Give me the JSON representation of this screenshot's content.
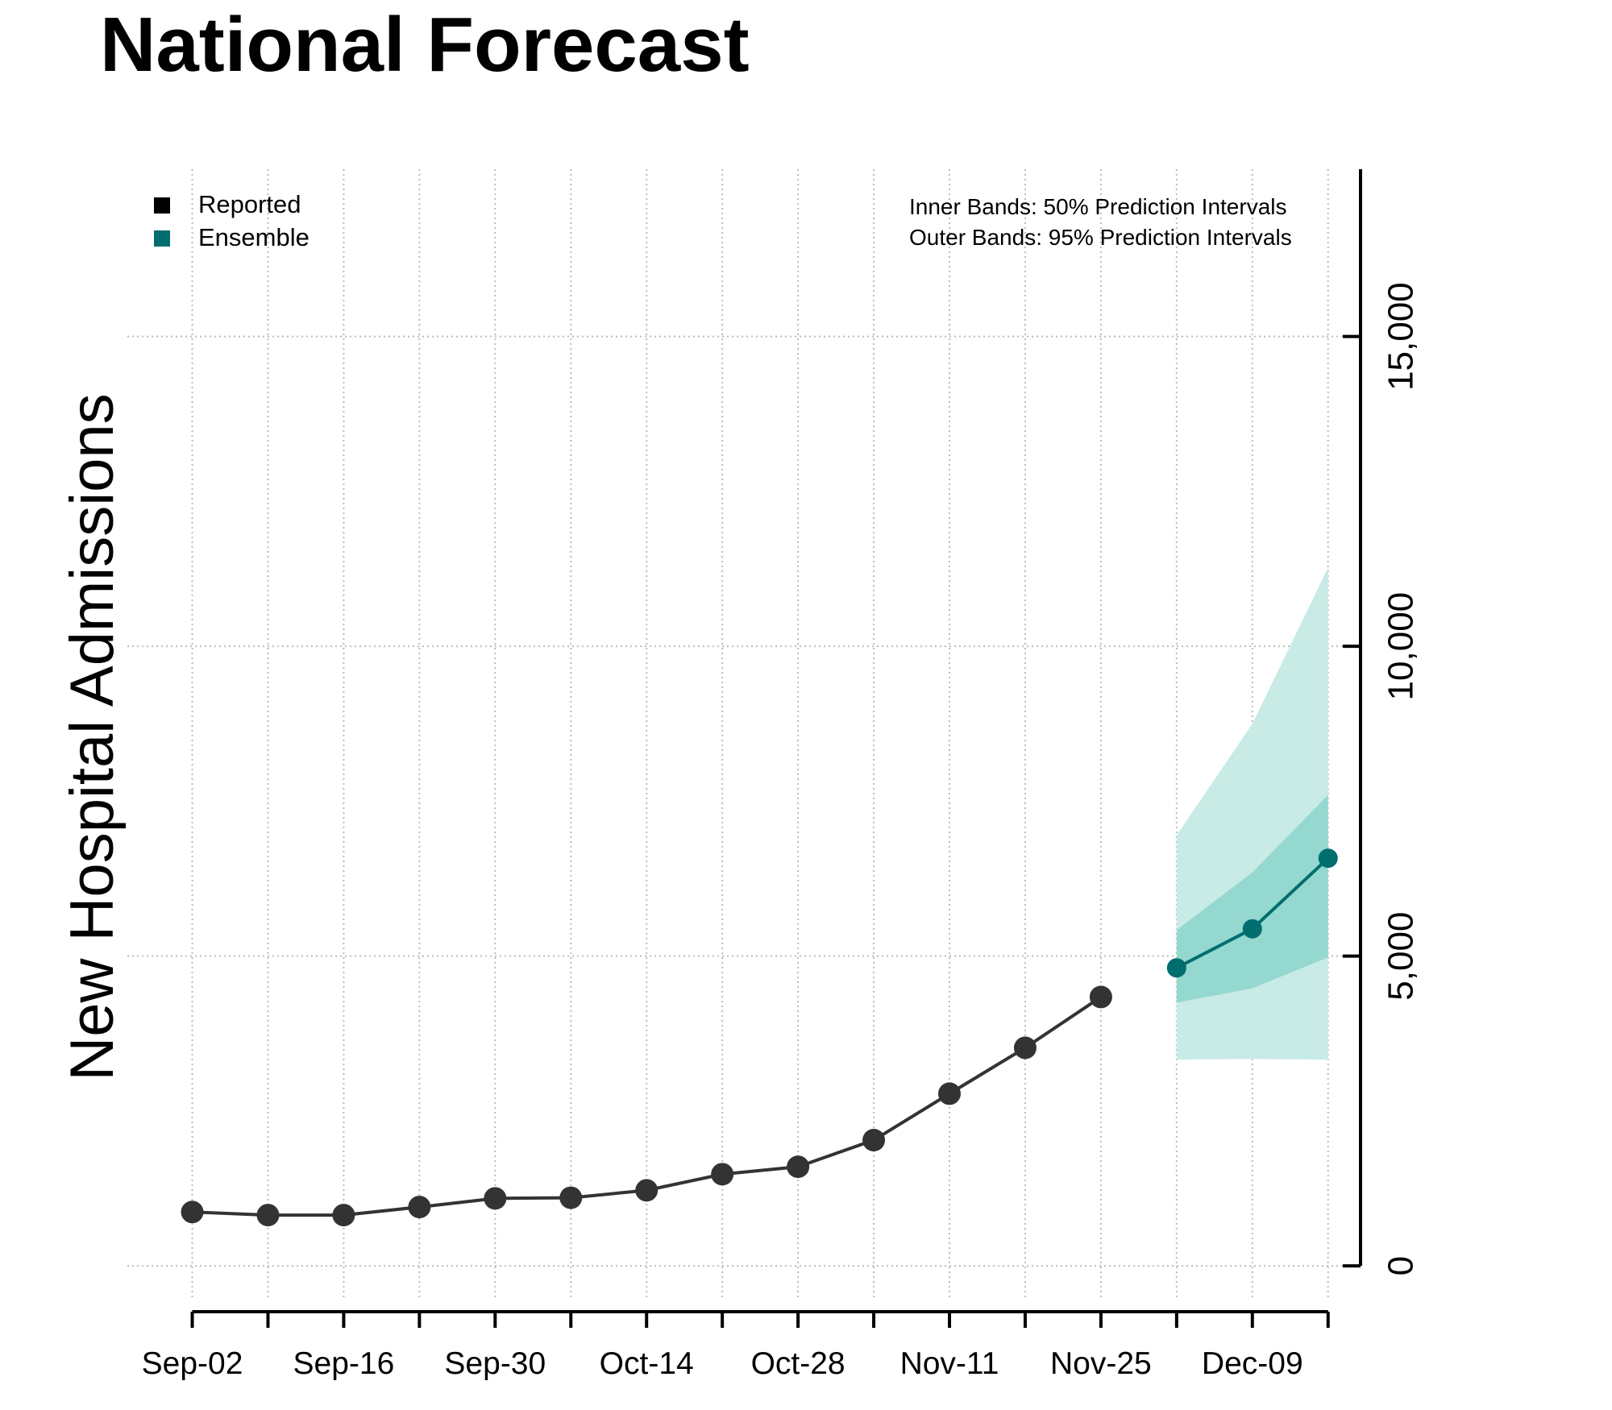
{
  "chart_data": {
    "type": "line",
    "title": "National Forecast",
    "ylabel": "New Hospital Admissions",
    "xlabel": "",
    "x_tick_labels": [
      "Sep-02",
      "Sep-16",
      "Sep-30",
      "Oct-14",
      "Oct-28",
      "Nov-11",
      "Nov-25",
      "Dec-09"
    ],
    "y_tick_labels": [
      "0",
      "5,000",
      "10,000",
      "15,000"
    ],
    "ylim": [
      -700,
      17700
    ],
    "xlim": [
      "2023-08-27",
      "2023-12-19"
    ],
    "y_ticks": [
      0,
      5000,
      10000,
      15000
    ],
    "grid": true,
    "legend_position": "top-left",
    "band_note_position": "top-right",
    "legend": [
      {
        "label": "Reported",
        "color": "#000000"
      },
      {
        "label": "Ensemble",
        "color": "#006d6f"
      }
    ],
    "band_notes": [
      "Inner Bands: 50% Prediction Intervals",
      "Outer Bands: 95% Prediction Intervals"
    ],
    "series": [
      {
        "name": "Reported",
        "color": "#333333",
        "x": [
          "2023-09-02",
          "2023-09-09",
          "2023-09-16",
          "2023-09-23",
          "2023-09-30",
          "2023-10-07",
          "2023-10-14",
          "2023-10-21",
          "2023-10-28",
          "2023-11-04",
          "2023-11-11",
          "2023-11-18",
          "2023-11-25"
        ],
        "values": [
          870,
          820,
          820,
          950,
          1090,
          1100,
          1220,
          1480,
          1600,
          2030,
          2780,
          3520,
          4340
        ]
      },
      {
        "name": "Ensemble",
        "color": "#006d6f",
        "x": [
          "2023-12-02",
          "2023-12-09",
          "2023-12-16"
        ],
        "values": [
          4810,
          5440,
          6580
        ],
        "inner_band": {
          "lower": [
            4250,
            4480,
            4980
          ],
          "upper": [
            5420,
            6350,
            7600
          ]
        },
        "outer_band": {
          "lower": [
            3330,
            3340,
            3330
          ],
          "upper": [
            6950,
            8750,
            11270
          ]
        }
      }
    ],
    "band_colors": {
      "outer": "#c8ebe5",
      "inner": "#94d8cf"
    }
  }
}
